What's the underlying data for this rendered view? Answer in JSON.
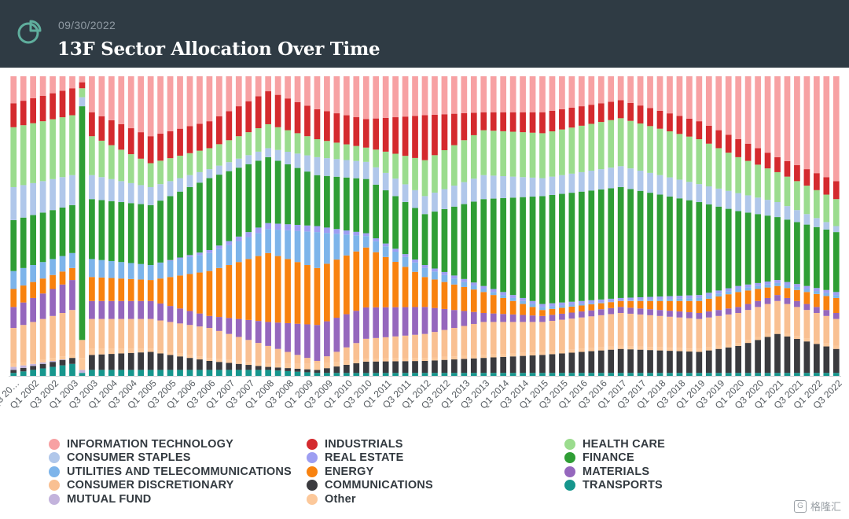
{
  "header": {
    "date": "09/30/2022",
    "title": "13F Sector Allocation Over Time",
    "logo_icon": "pie-chart-icon"
  },
  "watermark": {
    "text": "格隆汇",
    "icon": "g-logo-icon"
  },
  "colors": {
    "header_bg": "#2f3b44",
    "info_tech": "#f7a1a3",
    "consumer_staples": "#b0c7ea",
    "utilities": "#7db4ea",
    "consumer_disc": "#f9c092",
    "mutual_fund": "#c3b3dc",
    "industrials": "#d42a2e",
    "real_estate": "#9d9ef2",
    "energy": "#f8820f",
    "communications": "#3a3a3e",
    "other": "#fcc89a",
    "health_care": "#9bdc8e",
    "finance": "#2f9e35",
    "materials": "#9567bd",
    "transports": "#16968d"
  },
  "legend": [
    {
      "key": "info_tech",
      "label": "INFORMATION TECHNOLOGY",
      "col": 0,
      "row": 0
    },
    {
      "key": "consumer_staples",
      "label": "CONSUMER STAPLES",
      "col": 0,
      "row": 1
    },
    {
      "key": "utilities",
      "label": "UTILITIES AND TELECOMMUNICATIONS",
      "col": 0,
      "row": 2
    },
    {
      "key": "consumer_disc",
      "label": "CONSUMER DISCRETIONARY",
      "col": 0,
      "row": 3
    },
    {
      "key": "mutual_fund",
      "label": "MUTUAL FUND",
      "col": 0,
      "row": 4
    },
    {
      "key": "industrials",
      "label": "INDUSTRIALS",
      "col": 1,
      "row": 0
    },
    {
      "key": "real_estate",
      "label": "REAL ESTATE",
      "col": 1,
      "row": 1
    },
    {
      "key": "energy",
      "label": "ENERGY",
      "col": 1,
      "row": 2
    },
    {
      "key": "communications",
      "label": "COMMUNICATIONS",
      "col": 1,
      "row": 3
    },
    {
      "key": "other",
      "label": "Other",
      "col": 1,
      "row": 4
    },
    {
      "key": "health_care",
      "label": "HEALTH CARE",
      "col": 2,
      "row": 0
    },
    {
      "key": "finance",
      "label": "FINANCE",
      "col": 2,
      "row": 1
    },
    {
      "key": "materials",
      "label": "MATERIALS",
      "col": 2,
      "row": 2
    },
    {
      "key": "transports",
      "label": "TRANSPORTS",
      "col": 2,
      "row": 3
    }
  ],
  "chart_data": {
    "type": "bar",
    "stacked": true,
    "normalized": true,
    "ylim": [
      0,
      100
    ],
    "x_tick_labels": [
      "Q3 20…",
      "Q1 2002",
      "Q3 2002",
      "Q1 2003",
      "Q3 2003",
      "Q1 2004",
      "Q3 2004",
      "Q1 2005",
      "Q3 2005",
      "Q1 2006",
      "Q3 2006",
      "Q1 2007",
      "Q3 2007",
      "Q1 2008",
      "Q3 2008",
      "Q1 2009",
      "Q3 2009",
      "Q1 2010",
      "Q3 2010",
      "Q1 2011",
      "Q3 2011",
      "Q1 2012",
      "Q3 2012",
      "Q1 2013",
      "Q3 2013",
      "Q1 2014",
      "Q3 2014",
      "Q1 2015",
      "Q3 2015",
      "Q1 2016",
      "Q3 2016",
      "Q1 2017",
      "Q3 2017",
      "Q1 2018",
      "Q3 2018",
      "Q1 2019",
      "Q3 2019",
      "Q1 2020",
      "Q3 2020",
      "Q1 2021",
      "Q3 2021",
      "Q1 2022",
      "Q3 2022"
    ],
    "bar_count": 85,
    "stack_order_bottom_to_top": [
      "transports",
      "communications",
      "mutual_fund",
      "other",
      "consumer_disc",
      "materials",
      "energy",
      "utilities",
      "real_estate",
      "finance",
      "consumer_staples",
      "health_care",
      "industrials",
      "info_tech"
    ],
    "keyframes": [
      {
        "i": 0,
        "transports": 1,
        "communications": 1,
        "mutual_fund": 1,
        "other": 1,
        "consumer_disc": 12,
        "materials": 7,
        "energy": 6,
        "utilities": 6,
        "real_estate": 0,
        "finance": 17,
        "consumer_staples": 11,
        "health_care": 20,
        "industrials": 8,
        "info_tech": 9
      },
      {
        "i": 6,
        "transports": 4,
        "communications": 2,
        "mutual_fund": 0,
        "other": 1,
        "consumer_disc": 15,
        "materials": 10,
        "energy": 4,
        "utilities": 5,
        "real_estate": 0,
        "finance": 16,
        "consumer_staples": 10,
        "health_care": 20,
        "industrials": 9,
        "info_tech": 4
      },
      {
        "i": 7,
        "transports": 1,
        "communications": 0,
        "mutual_fund": 1,
        "other": 4,
        "consumer_disc": 6,
        "materials": 0,
        "energy": 0,
        "utilities": 0,
        "real_estate": 0,
        "finance": 78,
        "consumer_staples": 3,
        "health_care": 3,
        "industrials": 2,
        "info_tech": 2
      },
      {
        "i": 8,
        "transports": 2,
        "communications": 5,
        "mutual_fund": 0,
        "other": 2,
        "consumer_disc": 10,
        "materials": 6,
        "energy": 8,
        "utilities": 6,
        "real_estate": 0,
        "finance": 20,
        "consumer_staples": 8,
        "health_care": 13,
        "industrials": 8,
        "info_tech": 12
      },
      {
        "i": 14,
        "transports": 2,
        "communications": 6,
        "mutual_fund": 0,
        "other": 1,
        "consumer_disc": 10,
        "materials": 6,
        "energy": 7,
        "utilities": 5,
        "real_estate": 0,
        "finance": 20,
        "consumer_staples": 6,
        "health_care": 8,
        "industrials": 9,
        "info_tech": 20
      },
      {
        "i": 20,
        "transports": 2,
        "communications": 3,
        "mutual_fund": 0,
        "other": 1,
        "consumer_disc": 10,
        "materials": 4,
        "energy": 15,
        "utilities": 6,
        "real_estate": 1,
        "finance": 24,
        "consumer_staples": 3,
        "health_care": 7,
        "industrials": 9,
        "info_tech": 15
      },
      {
        "i": 26,
        "transports": 2,
        "communications": 1,
        "mutual_fund": 0,
        "other": 1,
        "consumer_disc": 6,
        "materials": 8,
        "energy": 23,
        "utilities": 8,
        "real_estate": 2,
        "finance": 22,
        "consumer_staples": 3,
        "health_care": 8,
        "industrials": 11,
        "info_tech": 5
      },
      {
        "i": 31,
        "transports": 1,
        "communications": 1,
        "mutual_fund": 0,
        "other": 2,
        "consumer_disc": 1,
        "materials": 12,
        "energy": 19,
        "utilities": 12,
        "real_estate": 2,
        "finance": 17,
        "consumer_staples": 6,
        "health_care": 6,
        "industrials": 10,
        "info_tech": 11
      },
      {
        "i": 36,
        "transports": 1,
        "communications": 4,
        "mutual_fund": 0,
        "other": 1,
        "consumer_disc": 7,
        "materials": 11,
        "energy": 21,
        "utilities": 4,
        "real_estate": 1,
        "finance": 19,
        "consumer_staples": 6,
        "health_care": 5,
        "industrials": 10,
        "info_tech": 15
      },
      {
        "i": 42,
        "transports": 1,
        "communications": 4,
        "mutual_fund": 0,
        "other": 1,
        "consumer_disc": 8,
        "materials": 9,
        "energy": 10,
        "utilities": 3,
        "real_estate": 1,
        "finance": 17,
        "consumer_staples": 6,
        "health_care": 12,
        "industrials": 15,
        "info_tech": 13
      },
      {
        "i": 48,
        "transports": 1,
        "communications": 5,
        "mutual_fund": 0,
        "other": 1,
        "consumer_disc": 11,
        "materials": 3,
        "energy": 7,
        "utilities": 1,
        "real_estate": 1,
        "finance": 29,
        "consumer_staples": 8,
        "health_care": 15,
        "industrials": 6,
        "info_tech": 12
      },
      {
        "i": 54,
        "transports": 1,
        "communications": 6,
        "mutual_fund": 0,
        "other": 1,
        "consumer_disc": 10,
        "materials": 2,
        "energy": 2,
        "utilities": 1,
        "real_estate": 1,
        "finance": 36,
        "consumer_staples": 6,
        "health_care": 15,
        "industrials": 7,
        "info_tech": 12
      },
      {
        "i": 62,
        "transports": 1,
        "communications": 8,
        "mutual_fund": 0,
        "other": 1,
        "consumer_disc": 11,
        "materials": 2,
        "energy": 2,
        "utilities": 0,
        "real_estate": 1,
        "finance": 37,
        "consumer_staples": 7,
        "health_care": 16,
        "industrials": 6,
        "info_tech": 8
      },
      {
        "i": 70,
        "transports": 1,
        "communications": 7,
        "mutual_fund": 0,
        "other": 1,
        "consumer_disc": 10,
        "materials": 2,
        "energy": 4,
        "utilities": 1,
        "real_estate": 1,
        "finance": 31,
        "consumer_staples": 6,
        "health_care": 15,
        "industrials": 6,
        "info_tech": 15
      },
      {
        "i": 74,
        "transports": 1,
        "communications": 9,
        "mutual_fund": 0,
        "other": 1,
        "consumer_disc": 10,
        "materials": 2,
        "energy": 5,
        "utilities": 1,
        "real_estate": 1,
        "finance": 25,
        "consumer_staples": 6,
        "health_care": 12,
        "industrials": 6,
        "info_tech": 21
      },
      {
        "i": 78,
        "transports": 1,
        "communications": 13,
        "mutual_fund": 0,
        "other": 1,
        "consumer_disc": 10,
        "materials": 2,
        "energy": 3,
        "utilities": 1,
        "real_estate": 1,
        "finance": 21,
        "consumer_staples": 5,
        "health_care": 10,
        "industrials": 5,
        "info_tech": 27
      },
      {
        "i": 84,
        "transports": 1,
        "communications": 8,
        "mutual_fund": 0,
        "other": 1,
        "consumer_disc": 9,
        "materials": 2,
        "energy": 5,
        "utilities": 1,
        "real_estate": 1,
        "finance": 20,
        "consumer_staples": 2,
        "health_care": 9,
        "industrials": 6,
        "info_tech": 35
      }
    ]
  }
}
